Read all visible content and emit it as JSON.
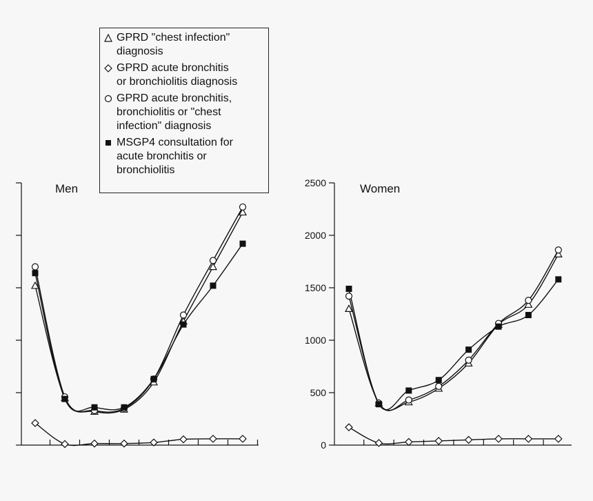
{
  "chart_data": [
    {
      "type": "line",
      "title": "Men",
      "x_count": 8,
      "ylim": [
        0,
        2500
      ],
      "yticks": [
        0,
        500,
        1000,
        1500,
        2000,
        2500
      ],
      "ytick_labels_visible": false,
      "series": [
        {
          "key": "chest",
          "marker": "triangle",
          "values": [
            1520,
            450,
            320,
            340,
            600,
            1180,
            1700,
            2220
          ]
        },
        {
          "key": "bronchitis",
          "marker": "diamond",
          "values": [
            210,
            10,
            15,
            15,
            25,
            55,
            60,
            60
          ]
        },
        {
          "key": "combined",
          "marker": "circle",
          "values": [
            1700,
            460,
            330,
            350,
            630,
            1240,
            1760,
            2270
          ]
        },
        {
          "key": "msgp4",
          "marker": "square",
          "values": [
            1640,
            440,
            360,
            360,
            630,
            1150,
            1520,
            1920
          ]
        }
      ]
    },
    {
      "type": "line",
      "title": "Women",
      "x_count": 8,
      "ylim": [
        0,
        2500
      ],
      "yticks": [
        0,
        500,
        1000,
        1500,
        2000,
        2500
      ],
      "ytick_labels": [
        "0",
        "500",
        "1000",
        "1500",
        "2000",
        "2500"
      ],
      "ytick_labels_visible": true,
      "series": [
        {
          "key": "chest",
          "marker": "triangle",
          "values": [
            1300,
            400,
            410,
            540,
            780,
            1150,
            1340,
            1820
          ]
        },
        {
          "key": "bronchitis",
          "marker": "diamond",
          "values": [
            170,
            20,
            30,
            40,
            50,
            60,
            60,
            60
          ]
        },
        {
          "key": "combined",
          "marker": "circle",
          "values": [
            1420,
            400,
            430,
            560,
            810,
            1160,
            1380,
            1860
          ]
        },
        {
          "key": "msgp4",
          "marker": "square",
          "values": [
            1490,
            390,
            520,
            620,
            910,
            1130,
            1240,
            1580
          ]
        }
      ]
    }
  ],
  "legend": {
    "items": [
      {
        "key": "chest",
        "marker": "triangle",
        "label": "GPRD \"chest infection\"\ndiagnosis"
      },
      {
        "key": "bronchitis",
        "marker": "diamond",
        "label": "GPRD acute bronchitis\nor bronchiolitis diagnosis"
      },
      {
        "key": "combined",
        "marker": "circle",
        "label": "GPRD acute bronchitis,\nbronchiolitis or \"chest\ninfection\" diagnosis"
      },
      {
        "key": "msgp4",
        "marker": "square",
        "label": "MSGP4 consultation for\nacute bronchitis or\nbronchiolitis"
      }
    ]
  },
  "colors": {
    "ink": "#111111",
    "background": "#f7f7f7",
    "hollow_fill": "#ffffff"
  }
}
